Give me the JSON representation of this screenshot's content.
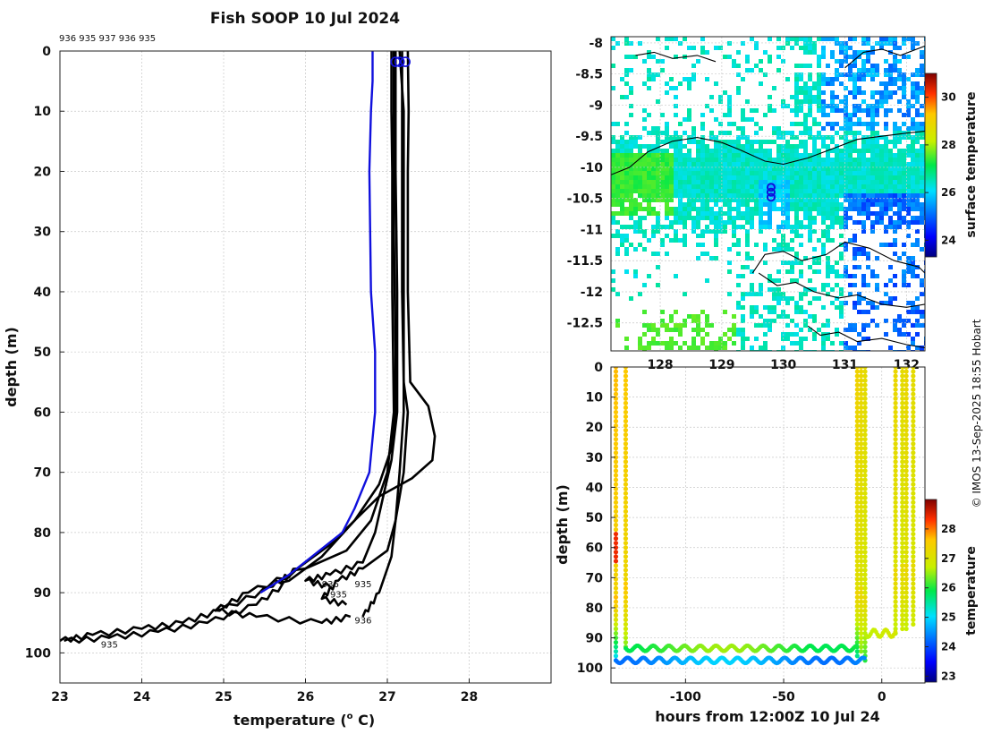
{
  "figure": {
    "title": "Fish SOOP 10 Jul 2024",
    "credit": "© IMOS 13-Sep-2025 18:55 Hobart",
    "cast_ids_label": "936 935 937 936 935"
  },
  "colors": {
    "latest_profile": "#1010dd",
    "profiles": "#000000",
    "coast": "#000000",
    "cast_marker": "#1010dd"
  },
  "chart_data": [
    {
      "type": "line",
      "name": "temperature-profiles",
      "xlabel": "temperature (° C)",
      "xlabel_prefix": "temperature (",
      "xlabel_sup": "o",
      "xlabel_suffix": " C)",
      "ylabel": "depth (m)",
      "xlim": [
        23,
        29
      ],
      "ylim": [
        0,
        105
      ],
      "xticks": [
        "23",
        "24",
        "25",
        "26",
        "27",
        "28"
      ],
      "yticks": [
        "0",
        "10",
        "20",
        "30",
        "40",
        "50",
        "60",
        "70",
        "80",
        "90",
        "100"
      ],
      "series": [
        {
          "name": "latest",
          "color": "#1010dd",
          "points": [
            [
              26.82,
              0
            ],
            [
              26.82,
              5
            ],
            [
              26.8,
              10
            ],
            [
              26.78,
              20
            ],
            [
              26.79,
              30
            ],
            [
              26.8,
              40
            ],
            [
              26.85,
              50
            ],
            [
              26.85,
              60
            ],
            [
              26.78,
              70
            ],
            [
              26.6,
              76
            ],
            [
              26.45,
              80
            ],
            [
              25.8,
              87
            ],
            [
              25.45,
              90
            ]
          ]
        },
        {
          "name": "cast-1",
          "color": "#000000",
          "points": [
            [
              27.25,
              0
            ],
            [
              27.26,
              10
            ],
            [
              27.25,
              20
            ],
            [
              27.25,
              40
            ],
            [
              27.28,
              55
            ],
            [
              27.5,
              59
            ],
            [
              27.58,
              64
            ],
            [
              27.55,
              68
            ],
            [
              27.3,
              71
            ],
            [
              26.9,
              74
            ],
            [
              26.6,
              78
            ],
            [
              26.3,
              82
            ],
            [
              25.9,
              86
            ],
            [
              25.6,
              89
            ],
            [
              24.95,
              93
            ],
            [
              24.5,
              95
            ],
            [
              24.0,
              96
            ],
            [
              23.4,
              97
            ],
            [
              23.0,
              98
            ]
          ]
        },
        {
          "name": "cast-2",
          "color": "#000000",
          "points": [
            [
              27.18,
              0
            ],
            [
              27.18,
              10
            ],
            [
              27.18,
              20
            ],
            [
              27.18,
              40
            ],
            [
              27.2,
              55
            ],
            [
              27.25,
              60
            ],
            [
              27.2,
              70
            ],
            [
              27.1,
              78
            ],
            [
              27.0,
              83
            ],
            [
              26.7,
              86
            ],
            [
              26.4,
              88
            ],
            [
              26.2,
              91
            ],
            [
              26.5,
              92
            ]
          ]
        },
        {
          "name": "cast-3",
          "color": "#000000",
          "points": [
            [
              27.1,
              0
            ],
            [
              27.1,
              10
            ],
            [
              27.1,
              20
            ],
            [
              27.12,
              40
            ],
            [
              27.12,
              60
            ],
            [
              27.05,
              68
            ],
            [
              26.95,
              74
            ],
            [
              26.85,
              80
            ],
            [
              26.7,
              85
            ],
            [
              26.3,
              87
            ],
            [
              26.0,
              88
            ],
            [
              26.3,
              89
            ]
          ]
        },
        {
          "name": "cast-4",
          "color": "#000000",
          "points": [
            [
              27.05,
              0
            ],
            [
              27.05,
              10
            ],
            [
              27.06,
              20
            ],
            [
              27.06,
              40
            ],
            [
              27.08,
              60
            ],
            [
              27.0,
              70
            ],
            [
              26.8,
              78
            ],
            [
              26.5,
              83
            ],
            [
              26.0,
              86
            ],
            [
              25.3,
              90
            ],
            [
              24.9,
              93
            ],
            [
              25.4,
              94
            ],
            [
              26.2,
              95
            ],
            [
              26.55,
              94
            ]
          ]
        },
        {
          "name": "cast-5",
          "color": "#000000",
          "points": [
            [
              27.15,
              0
            ],
            [
              27.2,
              10
            ],
            [
              27.2,
              20
            ],
            [
              27.2,
              40
            ],
            [
              27.2,
              60
            ],
            [
              27.15,
              70
            ],
            [
              27.1,
              78
            ],
            [
              27.05,
              84
            ],
            [
              26.9,
              90
            ],
            [
              26.7,
              94
            ]
          ]
        },
        {
          "name": "cast-6",
          "color": "#000000",
          "points": [
            [
              27.08,
              0
            ],
            [
              27.08,
              10
            ],
            [
              27.08,
              30
            ],
            [
              27.1,
              50
            ],
            [
              27.1,
              60
            ],
            [
              27.05,
              66
            ],
            [
              26.9,
              72
            ],
            [
              26.6,
              78
            ],
            [
              26.2,
              84
            ],
            [
              25.8,
              88
            ],
            [
              25.4,
              92
            ],
            [
              24.8,
              95
            ],
            [
              24.2,
              96.5
            ],
            [
              23.6,
              97.5
            ],
            [
              23.05,
              98
            ]
          ]
        }
      ],
      "profile_labels": [
        {
          "text": "936",
          "x": 26.2,
          "y": 88.5
        },
        {
          "text": "935",
          "x": 26.6,
          "y": 88.5
        },
        {
          "text": "935",
          "x": 26.3,
          "y": 90.2
        },
        {
          "text": "936",
          "x": 26.6,
          "y": 94.5
        },
        {
          "text": "935",
          "x": 23.5,
          "y": 98.5
        }
      ]
    },
    {
      "type": "heatmap",
      "name": "surface-temperature-map",
      "xlim": [
        127.2,
        132.3
      ],
      "ylim": [
        -12.95,
        -7.9
      ],
      "xticks": [
        "128",
        "129",
        "130",
        "131",
        "132"
      ],
      "yticks": [
        "-8",
        "-8.5",
        "-9",
        "-9.5",
        "-10",
        "-10.5",
        "-11",
        "-11.5",
        "-12",
        "-12.5"
      ],
      "cast_location": {
        "lon": 129.8,
        "lat": -10.4
      },
      "colorbar": {
        "label": "surface temperature",
        "range": [
          23.3,
          31
        ],
        "ticks": [
          "24",
          "26",
          "28",
          "30"
        ]
      }
    },
    {
      "type": "scatter",
      "name": "depth-time-section",
      "xlabel": "hours from 12:00Z 10 Jul 24",
      "ylabel": "depth (m)",
      "xlim": [
        -138,
        22
      ],
      "ylim": [
        0,
        105
      ],
      "xticks": [
        "-100",
        "-50",
        "0"
      ],
      "yticks": [
        "0",
        "10",
        "20",
        "30",
        "40",
        "50",
        "60",
        "70",
        "80",
        "90",
        "100"
      ],
      "colorbar": {
        "label": "temperature",
        "range": [
          22.8,
          29
        ],
        "ticks": [
          "23",
          "24",
          "25",
          "26",
          "27",
          "28"
        ]
      },
      "casts": [
        {
          "x": -135.5,
          "t_surface": 27.7,
          "t_warm": 28.4,
          "warm_depth": [
            55,
            65
          ],
          "t_bottom": 24.8,
          "bottom": 98
        },
        {
          "x": -130.5,
          "t_surface": 27.6,
          "t_warm": 27.6,
          "warm_depth": [
            0,
            0
          ],
          "t_bottom": 26.3,
          "bottom": 94
        },
        {
          "x": -12.5,
          "t_surface": 27.4,
          "t_warm": 27.4,
          "warm_depth": [
            0,
            0
          ],
          "t_bottom": 25.6,
          "bottom": 96
        },
        {
          "x": -10.5,
          "t_surface": 27.3,
          "t_warm": 27.3,
          "warm_depth": [
            0,
            0
          ],
          "t_bottom": 26.4,
          "bottom": 95
        },
        {
          "x": -8.5,
          "t_surface": 27.2,
          "t_warm": 27.2,
          "warm_depth": [
            0,
            0
          ],
          "t_bottom": 26.0,
          "bottom": 98
        },
        {
          "x": 7.0,
          "t_surface": 27.3,
          "t_warm": 27.3,
          "warm_depth": [
            0,
            0
          ],
          "t_bottom": 26.6,
          "bottom": 89
        },
        {
          "x": 10.5,
          "t_surface": 27.2,
          "t_warm": 27.2,
          "warm_depth": [
            0,
            0
          ],
          "t_bottom": 26.8,
          "bottom": 88
        },
        {
          "x": 12.5,
          "t_surface": 27.3,
          "t_warm": 27.3,
          "warm_depth": [
            0,
            0
          ],
          "t_bottom": 26.7,
          "bottom": 87
        },
        {
          "x": 16.0,
          "t_surface": 27.2,
          "t_warm": 27.2,
          "warm_depth": [
            0,
            0
          ],
          "t_bottom": 26.8,
          "bottom": 86
        }
      ],
      "undulations": [
        {
          "x_start": -130.5,
          "x_end": -12.5,
          "depth": 93.5,
          "amplitude": 0.9,
          "period": 8,
          "temperature": 26.2
        },
        {
          "x_start": -135.5,
          "x_end": -8.5,
          "depth": 97.5,
          "amplitude": 0.9,
          "period": 8,
          "temperature": 24.6
        },
        {
          "x_start": -8.5,
          "x_end": 7.0,
          "depth": 88.5,
          "amplitude": 1.2,
          "period": 6,
          "temperature": 26.8
        }
      ]
    }
  ]
}
